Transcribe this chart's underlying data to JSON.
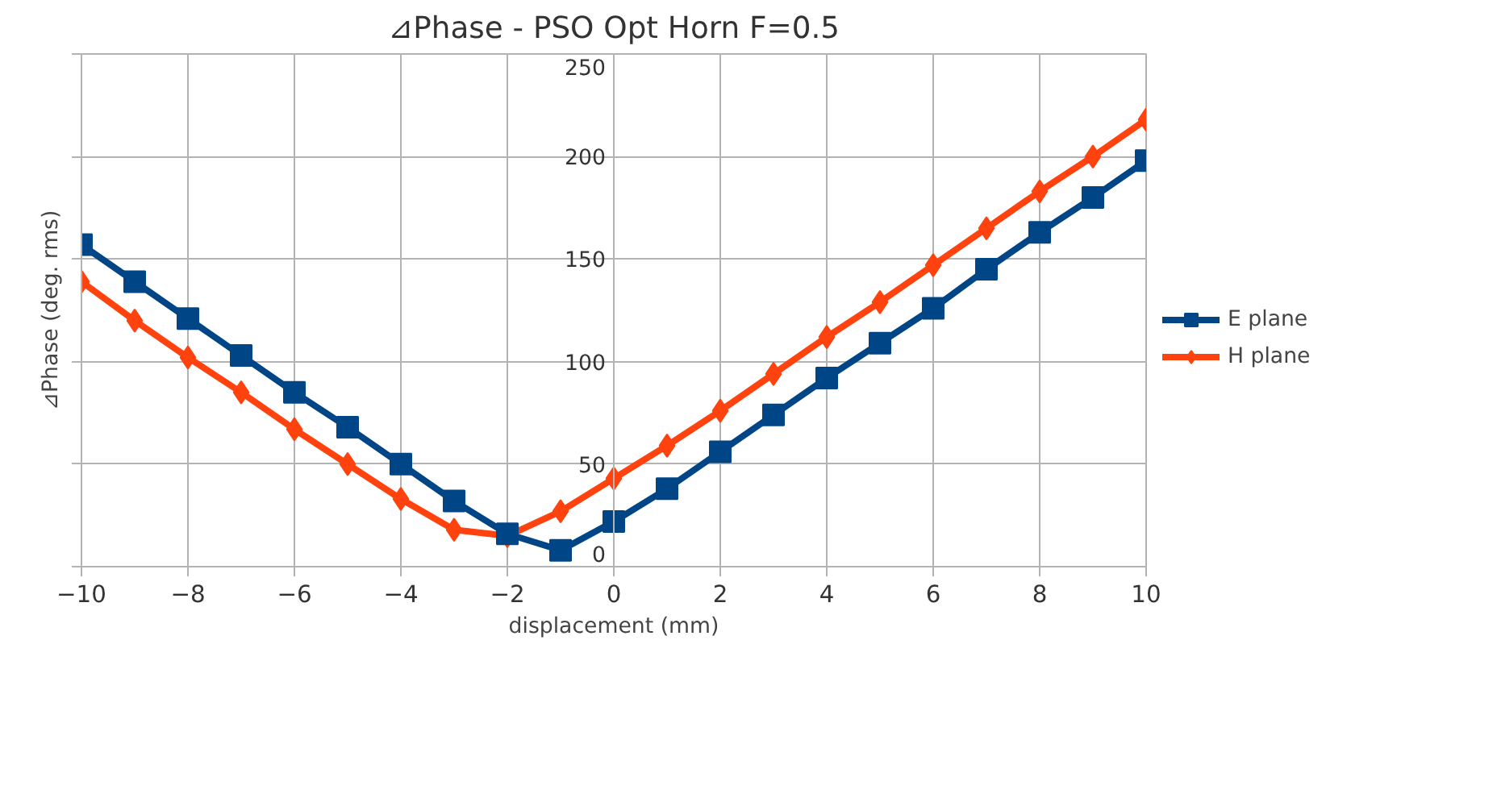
{
  "chart_data": {
    "type": "line",
    "title": "⊿Phase - PSO Opt Horn F=0.5",
    "xlabel": "displacement (mm)",
    "ylabel": "⊿Phase (deg. rms)",
    "x": [
      -10,
      -9,
      -8,
      -7,
      -6,
      -5,
      -4,
      -3,
      -2,
      -1,
      0,
      1,
      2,
      3,
      4,
      5,
      6,
      7,
      8,
      9,
      10
    ],
    "series": [
      {
        "name": "E plane",
        "color": "#004586",
        "marker": "square",
        "values": [
          157,
          139,
          121,
          103,
          85,
          68,
          50,
          32,
          16,
          8,
          22,
          38,
          56,
          74,
          92,
          109,
          126,
          145,
          163,
          180,
          198
        ]
      },
      {
        "name": "H plane",
        "color": "#ff420e",
        "marker": "diamond",
        "values": [
          139,
          120,
          102,
          85,
          67,
          50,
          33,
          18,
          15,
          27,
          43,
          59,
          76,
          94,
          112,
          129,
          147,
          165,
          183,
          200,
          218
        ]
      }
    ],
    "xlim": [
      -10,
      10
    ],
    "xticks": [
      -10,
      -8,
      -6,
      -4,
      -2,
      0,
      2,
      4,
      6,
      8,
      10
    ],
    "ylim": [
      0,
      250
    ],
    "yticks": [
      0,
      50,
      100,
      150,
      200,
      250
    ],
    "grid": true,
    "legend": "right",
    "line_style": "solid"
  }
}
